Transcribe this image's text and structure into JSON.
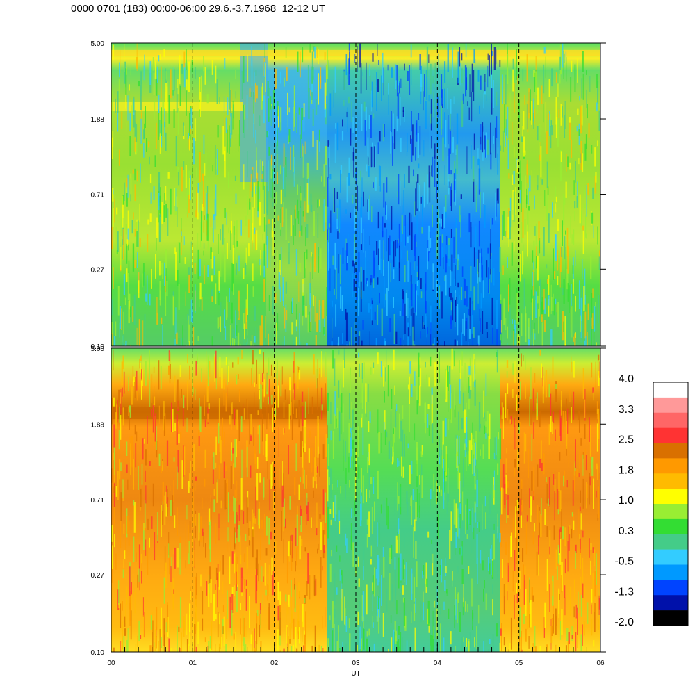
{
  "header": {
    "title": "0000 0701 (183) 00:00-06:00 29.6.-3.7.1968  12-12 UT"
  },
  "chart_data": [
    {
      "type": "heatmap",
      "panel": "upper",
      "x_unit": "UT hours",
      "x_range": [
        0,
        6
      ],
      "y_scale": "log",
      "y_tick_labels": [
        "5.00",
        "1.88",
        "0.71",
        "0.27",
        "0.10"
      ],
      "y_tick_values": [
        5.0,
        1.88,
        0.71,
        0.27,
        0.1
      ],
      "ylim": [
        0.1,
        5.0
      ],
      "dashed_vertical_lines_at_ut": [
        1,
        2,
        3,
        4,
        5
      ],
      "segments": [
        {
          "ut_start": 0.0,
          "ut_end": 1.6,
          "dominant_level": "0.3 to 1.0 (green/yellow)",
          "band_at_2.0": "1.0"
        },
        {
          "ut_start": 1.6,
          "ut_end": 2.65,
          "dominant_level": "-0.5 to 0.3 (cyan/green)"
        },
        {
          "ut_start": 2.65,
          "ut_end": 4.77,
          "dominant_level": "-1.3 to -0.5 (blue)"
        },
        {
          "ut_start": 4.77,
          "ut_end": 6.0,
          "dominant_level": "0.3 to 1.0 (green/yellow)"
        }
      ]
    },
    {
      "type": "heatmap",
      "panel": "lower",
      "x_unit": "UT hours",
      "x_range": [
        0,
        6
      ],
      "x_tick_labels": [
        "00",
        "01",
        "02",
        "03",
        "04",
        "05",
        "06"
      ],
      "x_tick_values": [
        0,
        1,
        2,
        3,
        4,
        5,
        6
      ],
      "xlabel": "UT",
      "y_scale": "log",
      "y_tick_labels": [
        "5.00",
        "1.88",
        "0.71",
        "0.27",
        "0.10"
      ],
      "y_tick_values": [
        5.0,
        1.88,
        0.71,
        0.27,
        0.1
      ],
      "ylim": [
        0.1,
        5.0
      ],
      "dashed_vertical_lines_at_ut": [
        1,
        2,
        3,
        4,
        5
      ],
      "segments": [
        {
          "ut_start": 0.0,
          "ut_end": 2.65,
          "dominant_level": "1.0 to 2.5 (orange)",
          "band_at_2.0": "2.5"
        },
        {
          "ut_start": 2.65,
          "ut_end": 4.77,
          "dominant_level": "-0.5 to 0.3 (green/cyan)"
        },
        {
          "ut_start": 4.77,
          "ut_end": 6.0,
          "dominant_level": "1.0 to 2.5 (orange)",
          "band_at_2.0": "2.5"
        }
      ]
    }
  ],
  "colorbar": {
    "labels": [
      "4.0",
      "3.3",
      "2.5",
      "1.8",
      "1.0",
      "0.3",
      "-0.5",
      "-1.3",
      "-2.0"
    ],
    "colors": [
      "#ffffff",
      "#ff9999",
      "#ff6666",
      "#ff3333",
      "#d97000",
      "#ff9900",
      "#ffbb00",
      "#ffff00",
      "#99ee33",
      "#33dd33",
      "#44cc88",
      "#33ccff",
      "#0099ff",
      "#0044ff",
      "#0011aa",
      "#000000"
    ]
  },
  "palette": {
    "upper_green": "#44dd55",
    "upper_yellow": "#ccee33",
    "upper_blue": "#1188ff",
    "lower_orange": "#ffaa11",
    "lower_dark_orange": "#dd7711",
    "lower_green": "#55cc77"
  }
}
